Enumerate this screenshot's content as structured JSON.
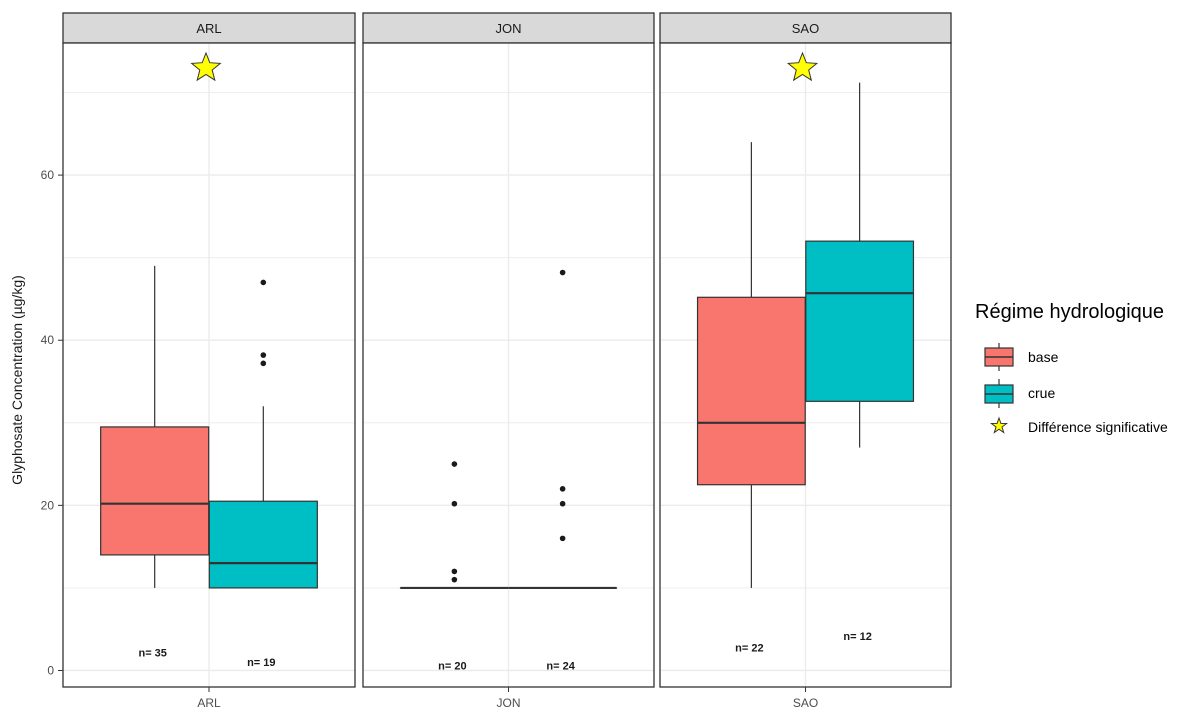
{
  "chart_data": {
    "type": "box",
    "ylabel": "Glyphosate Concentration (µg/kg)",
    "xlabel": "",
    "ylim": [
      -2,
      76
    ],
    "yticks": [
      0,
      20,
      40,
      60
    ],
    "grid": true,
    "facets": [
      "ARL",
      "JON",
      "SAO"
    ],
    "legend": {
      "title": "Régime hydrologique",
      "position": "right",
      "entries": [
        {
          "key": "base",
          "label": "base",
          "color": "#F8766D"
        },
        {
          "key": "crue",
          "label": "crue",
          "color": "#00BFC4"
        },
        {
          "key": "star",
          "label": "Différence significative",
          "color": "#FFFF00"
        }
      ]
    },
    "groups": [
      {
        "facet": "ARL",
        "significant": true,
        "boxes": [
          {
            "series": "base",
            "whisker_low": 10,
            "q1": 14,
            "median": 20.2,
            "q3": 29.5,
            "whisker_high": 49,
            "outliers": [],
            "n_label": "n= 35",
            "n_y": 2.2
          },
          {
            "series": "crue",
            "whisker_low": 10,
            "q1": 10,
            "median": 13,
            "q3": 20.5,
            "whisker_high": 32,
            "outliers": [
              47,
              38.2,
              37.2
            ],
            "n_label": "n= 19",
            "n_y": 1
          }
        ]
      },
      {
        "facet": "JON",
        "significant": false,
        "boxes": [
          {
            "series": "base",
            "whisker_low": 10,
            "q1": 10,
            "median": 10,
            "q3": 10,
            "whisker_high": 10,
            "outliers": [
              25,
              20.2,
              12,
              11
            ],
            "n_label": "n= 20",
            "n_y": 0.6
          },
          {
            "series": "crue",
            "whisker_low": 10,
            "q1": 10,
            "median": 10,
            "q3": 10,
            "whisker_high": 10,
            "outliers": [
              48.2,
              22,
              20.2,
              16
            ],
            "n_label": "n= 24",
            "n_y": 0.6
          }
        ]
      },
      {
        "facet": "SAO",
        "significant": true,
        "boxes": [
          {
            "series": "base",
            "whisker_low": 10,
            "q1": 22.5,
            "median": 30,
            "q3": 45.2,
            "whisker_high": 64,
            "outliers": [],
            "n_label": "n= 22",
            "n_y": 2.8
          },
          {
            "series": "crue",
            "whisker_low": 27,
            "q1": 32.6,
            "median": 45.7,
            "q3": 52,
            "whisker_high": 71.2,
            "outliers": [],
            "n_label": "n= 12",
            "n_y": 4.2
          }
        ]
      }
    ]
  }
}
